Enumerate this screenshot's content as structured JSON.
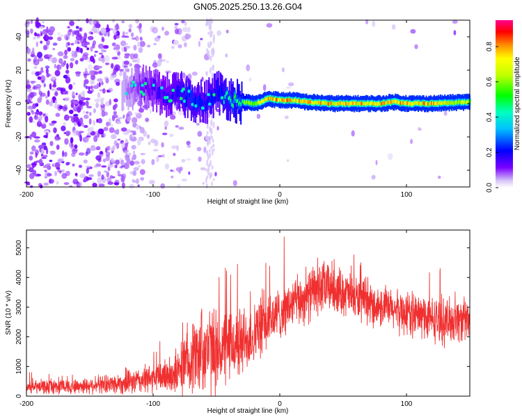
{
  "title": "GN05.2025.250.13.26.G04",
  "colors": {
    "background": "#ffffff",
    "axis": "#000000",
    "snr_line": "#f03030",
    "spectrogram_low": "#e8d8f8",
    "spectrogram_mid": "#6a00e8"
  },
  "chart_data": [
    {
      "type": "heatmap",
      "name": "spectrogram",
      "xlabel": "Height of straight line (km)",
      "ylabel": "Frequency (Hz)",
      "xlim": [
        -200,
        150
      ],
      "ylim": [
        -50,
        50
      ],
      "x_ticks": [
        -200,
        -100,
        0,
        100
      ],
      "y_ticks": [
        -40,
        -20,
        0,
        20,
        40
      ],
      "colorbar": {
        "label": "Normalized spectral amplitude",
        "range": [
          0,
          0.95
        ],
        "ticks": [
          0.0,
          0.2,
          0.4,
          0.6,
          0.8
        ],
        "tick_labels": [
          "0.0",
          "0.2",
          "0.4",
          "0.6",
          "0.8"
        ],
        "colormap": "rainbow-reversed"
      },
      "ridge": {
        "description": "Doppler ridge near 0 Hz",
        "x": [
          -120,
          -110,
          -100,
          -90,
          -80,
          -70,
          -60,
          -50,
          -40,
          -30,
          -20,
          -15,
          -10,
          0,
          10,
          20,
          40,
          60,
          80,
          90,
          100,
          120,
          150
        ],
        "freq": [
          8,
          10,
          8,
          5,
          6,
          3,
          0,
          7,
          3,
          1,
          0,
          1,
          3,
          2,
          2,
          1,
          0,
          0,
          0,
          1,
          0,
          0,
          1
        ],
        "amplitude": [
          0.15,
          0.25,
          0.3,
          0.35,
          0.4,
          0.45,
          0.4,
          0.45,
          0.5,
          0.6,
          0.75,
          0.85,
          0.85,
          0.9,
          0.85,
          0.85,
          0.85,
          0.85,
          0.85,
          0.9,
          0.85,
          0.85,
          0.7
        ]
      }
    },
    {
      "type": "line",
      "name": "snr",
      "xlabel": "Height of straight line (km)",
      "ylabel": "SNR (10 * v/v)",
      "xlim": [
        -200,
        150
      ],
      "ylim": [
        0,
        5600
      ],
      "x_ticks": [
        -200,
        -100,
        0,
        100
      ],
      "y_ticks": [
        0,
        1000,
        2000,
        3000,
        4000,
        5000
      ],
      "series": [
        {
          "name": "SNR",
          "envelope_x": [
            -200,
            -180,
            -160,
            -140,
            -120,
            -100,
            -90,
            -80,
            -70,
            -60,
            -50,
            -40,
            -30,
            -20,
            -10,
            0,
            10,
            20,
            30,
            40,
            50,
            60,
            70,
            80,
            90,
            100,
            110,
            120,
            130,
            140,
            150
          ],
          "baseline": [
            300,
            320,
            330,
            400,
            450,
            600,
            700,
            800,
            1300,
            1600,
            1500,
            1700,
            1800,
            2100,
            2500,
            2800,
            3100,
            3300,
            3600,
            3700,
            3500,
            3300,
            3100,
            3000,
            2900,
            2800,
            2700,
            2600,
            2500,
            2600,
            2500
          ],
          "spread": [
            250,
            300,
            300,
            350,
            450,
            600,
            700,
            900,
            1400,
            1800,
            1600,
            1500,
            1400,
            1200,
            1200,
            1000,
            1000,
            1000,
            1100,
            1000,
            900,
            900,
            800,
            800,
            800,
            900,
            900,
            900,
            900,
            900,
            900
          ]
        }
      ]
    }
  ]
}
